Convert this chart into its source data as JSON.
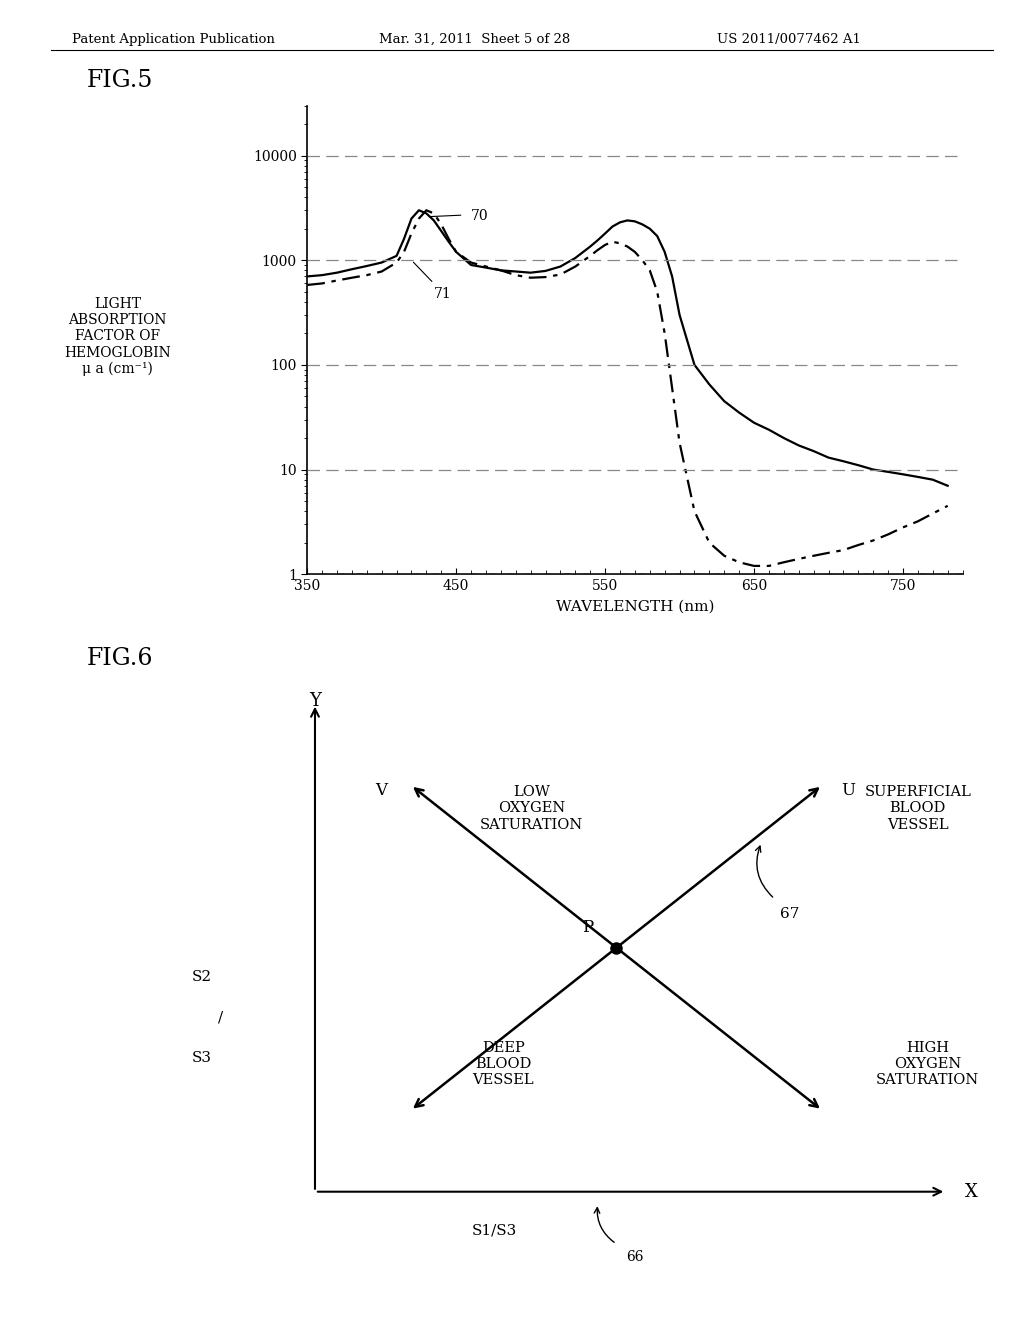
{
  "header_left": "Patent Application Publication",
  "header_mid": "Mar. 31, 2011  Sheet 5 of 28",
  "header_right": "US 2011/0077462 A1",
  "fig5_title": "FIG.5",
  "fig6_title": "FIG.6",
  "ylabel": "LIGHT\nABSORPTION\nFACTOR OF\nHEMOGLOBIN\nμ a (cm⁻¹)",
  "xlabel": "WAVELENGTH (nm)",
  "background_color": "#ffffff",
  "grid_color": "#888888",
  "curve70_x": [
    350,
    360,
    370,
    380,
    390,
    400,
    410,
    415,
    420,
    425,
    430,
    435,
    440,
    445,
    450,
    460,
    470,
    480,
    490,
    500,
    510,
    520,
    530,
    540,
    545,
    550,
    555,
    560,
    565,
    570,
    575,
    580,
    585,
    590,
    595,
    600,
    610,
    620,
    630,
    640,
    650,
    660,
    670,
    680,
    690,
    700,
    710,
    720,
    730,
    740,
    750,
    760,
    770,
    780
  ],
  "curve70_y": [
    700,
    720,
    760,
    820,
    880,
    950,
    1100,
    1600,
    2500,
    3000,
    2800,
    2400,
    1900,
    1500,
    1200,
    900,
    850,
    800,
    780,
    760,
    790,
    870,
    1050,
    1350,
    1550,
    1800,
    2100,
    2300,
    2400,
    2350,
    2200,
    2000,
    1700,
    1200,
    700,
    300,
    100,
    65,
    45,
    35,
    28,
    24,
    20,
    17,
    15,
    13,
    12,
    11,
    10,
    9.5,
    9,
    8.5,
    8,
    7
  ],
  "curve71_x": [
    350,
    360,
    370,
    380,
    390,
    400,
    410,
    415,
    420,
    425,
    430,
    435,
    440,
    445,
    450,
    460,
    470,
    480,
    490,
    500,
    510,
    520,
    530,
    540,
    545,
    550,
    555,
    560,
    565,
    570,
    575,
    580,
    585,
    590,
    595,
    600,
    610,
    620,
    630,
    640,
    650,
    660,
    670,
    680,
    690,
    700,
    710,
    720,
    730,
    740,
    750,
    760,
    770,
    780
  ],
  "curve71_y": [
    580,
    600,
    640,
    680,
    720,
    780,
    950,
    1200,
    1800,
    2500,
    3000,
    2800,
    2200,
    1600,
    1200,
    950,
    870,
    800,
    720,
    680,
    690,
    730,
    870,
    1100,
    1250,
    1400,
    1500,
    1450,
    1350,
    1200,
    1000,
    800,
    500,
    200,
    60,
    18,
    4,
    2.0,
    1.5,
    1.3,
    1.2,
    1.2,
    1.3,
    1.4,
    1.5,
    1.6,
    1.7,
    1.9,
    2.1,
    2.4,
    2.8,
    3.2,
    3.8,
    4.5
  ],
  "fig6_low_oxygen": "LOW\nOXYGEN\nSATURATION",
  "fig6_superficial": "SUPERFICIAL\nBLOOD\nVESSEL",
  "fig6_high_oxygen": "HIGH\nOXYGEN\nSATURATION",
  "fig6_deep_blood": "DEEP\nBLOOD\nVESSEL"
}
